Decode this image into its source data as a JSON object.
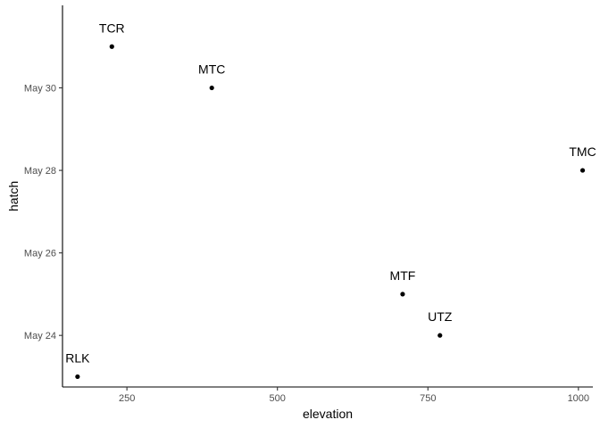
{
  "chart_data": {
    "type": "scatter",
    "title": "",
    "xlabel": "elevation",
    "ylabel": "hatch",
    "xlim": [
      143,
      1024
    ],
    "x_ticks": [
      250,
      500,
      750,
      1000
    ],
    "x_tick_labels": [
      "250",
      "500",
      "750",
      "1000"
    ],
    "ylim": [
      "2023-05-22 18:00",
      "2023-06-01 00:00"
    ],
    "y_ticks": [
      "2023-05-24",
      "2023-05-26",
      "2023-05-28",
      "2023-05-30"
    ],
    "y_tick_labels": [
      "May 24",
      "May 26",
      "May 28",
      "May 30"
    ],
    "grid": false,
    "legend": "none",
    "points": [
      {
        "label": "TCR",
        "x": 225,
        "y": "2023-05-31"
      },
      {
        "label": "MTC",
        "x": 391,
        "y": "2023-05-30"
      },
      {
        "label": "TMC",
        "x": 1007,
        "y": "2023-05-28"
      },
      {
        "label": "MTF",
        "x": 708,
        "y": "2023-05-25"
      },
      {
        "label": "UTZ",
        "x": 770,
        "y": "2023-05-24"
      },
      {
        "label": "RLK",
        "x": 168,
        "y": "2023-05-23"
      }
    ],
    "colors": {
      "points": "#000000",
      "axis": "#000000",
      "tick_text": "#4d4d4d"
    }
  }
}
